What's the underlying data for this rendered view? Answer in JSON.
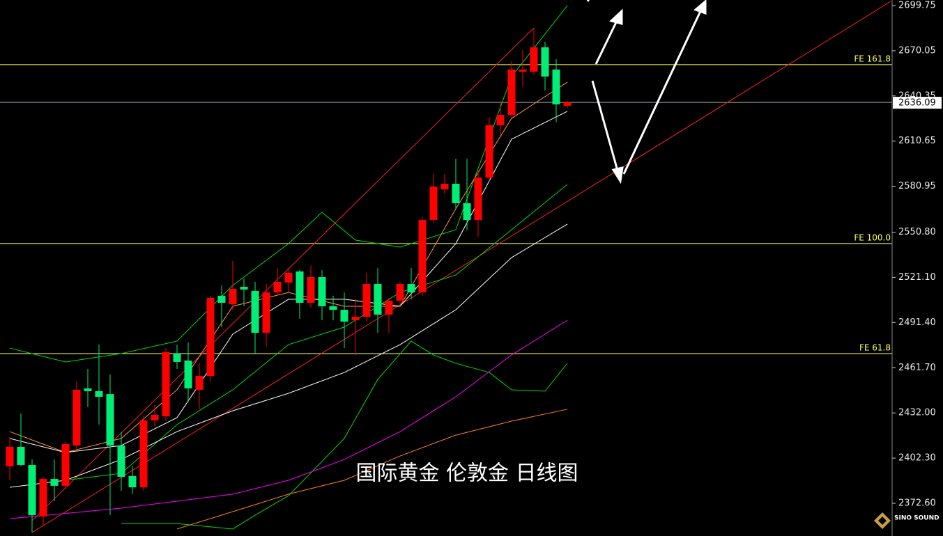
{
  "chart_data": {
    "type": "candlestick",
    "title": "国际黄金 伦敦金 日线图",
    "up_color": "#ff0000",
    "down_color": "#00ee76",
    "open": [
      2396.9,
      2409.7,
      2397.8,
      2363.9,
      2388.6,
      2384.1,
      2410.6,
      2448.1,
      2446.3,
      2444.4,
      2410.6,
      2390.5,
      2383.1,
      2427.1,
      2429.8,
      2471.0,
      2466.4,
      2447.2,
      2456.3,
      2509.0,
      2503.5,
      2514.9,
      2512.2,
      2484.7,
      2511.2,
      2517.7,
      2525.0,
      2504.4,
      2521.3,
      2502.1,
      2499.8,
      2492.9,
      2495.2,
      2516.7,
      2496.6,
      2505.8,
      2516.7,
      2511.2,
      2558.8,
      2579.0,
      2582.6,
      2569.8,
      2558.8,
      2586.7,
      2621.1,
      2627.9,
      2656.3,
      2656.3,
      2672.3,
      2657.7,
      2633.9
    ],
    "high": [
      2416.1,
      2431.6,
      2401.4,
      2390.0,
      2401.4,
      2412.9,
      2452.7,
      2460.9,
      2476.9,
      2457.3,
      2419.7,
      2396.9,
      2429.8,
      2437.1,
      2474.6,
      2476.9,
      2478.3,
      2464.6,
      2509.0,
      2515.8,
      2531.8,
      2520.4,
      2518.1,
      2516.7,
      2527.3,
      2527.3,
      2525.9,
      2528.6,
      2525.9,
      2509.0,
      2511.2,
      2506.7,
      2524.1,
      2527.3,
      2507.6,
      2518.1,
      2527.3,
      2560.7,
      2589.0,
      2589.0,
      2599.1,
      2599.1,
      2591.3,
      2626.5,
      2637.1,
      2663.2,
      2670.5,
      2685.1,
      2676.0,
      2664.5,
      2637.1
    ],
    "low": [
      2387.7,
      2396.9,
      2353.4,
      2358.0,
      2374.0,
      2382.2,
      2408.3,
      2435.8,
      2424.3,
      2364.8,
      2380.8,
      2378.6,
      2380.8,
      2423.4,
      2426.6,
      2460.9,
      2439.0,
      2434.4,
      2452.7,
      2488.4,
      2499.8,
      2502.1,
      2471.0,
      2475.6,
      2509.0,
      2511.2,
      2493.9,
      2501.2,
      2492.9,
      2492.9,
      2474.6,
      2470.1,
      2492.0,
      2484.7,
      2484.7,
      2502.1,
      2506.7,
      2509.0,
      2557.0,
      2576.2,
      2566.2,
      2552.4,
      2547.9,
      2584.5,
      2614.2,
      2626.5,
      2646.2,
      2654.0,
      2643.9,
      2623.3,
      2632.5
    ],
    "close": [
      2409.7,
      2397.8,
      2364.8,
      2388.6,
      2384.1,
      2411.5,
      2447.2,
      2446.3,
      2442.6,
      2410.6,
      2390.0,
      2383.1,
      2427.1,
      2430.7,
      2471.9,
      2465.5,
      2448.1,
      2456.3,
      2507.6,
      2504.4,
      2513.5,
      2513.1,
      2484.7,
      2511.2,
      2518.1,
      2524.1,
      2504.4,
      2521.3,
      2502.1,
      2499.8,
      2492.0,
      2495.2,
      2516.7,
      2496.6,
      2505.8,
      2516.7,
      2511.2,
      2558.8,
      2580.8,
      2582.6,
      2569.8,
      2558.8,
      2586.7,
      2621.1,
      2627.9,
      2657.7,
      2657.7,
      2672.3,
      2653.1,
      2634.8,
      2636.09
    ],
    "ylim": [
      2351.1,
      2703.4
    ],
    "yticks": [
      2699.75,
      2670.05,
      2640.35,
      2610.65,
      2580.95,
      {
        "value": 2550.8,
        "label": "2550.80"
      },
      {
        "value": 2521.1,
        "label": "2521.10"
      },
      {
        "value": 2491.4,
        "label": "2491.40"
      },
      {
        "value": 2461.7,
        "label": "2461.70"
      },
      {
        "value": 2432.0,
        "label": "2432.00"
      },
      {
        "value": 2402.3,
        "label": "2402.30"
      },
      {
        "value": 2372.6,
        "label": "2372.60"
      }
    ],
    "overlays": [
      {
        "color": "#ff2020",
        "x": [
          2,
          79
        ],
        "values": [
          2353.4,
          2702.5
        ]
      },
      {
        "color": "#ff2020",
        "x": [
          2,
          47
        ],
        "values": [
          2361.2,
          2685.1
        ]
      },
      {
        "color": "#ff9a30",
        "x": [
          0,
          5,
          10,
          15,
          20,
          25,
          30,
          35,
          40,
          45,
          50
        ],
        "values": [
          2419.7,
          2406.0,
          2415.2,
          2447.2,
          2502.1,
          2511.2,
          2502.1,
          2502.1,
          2566.2,
          2625.6,
          2649.4
        ]
      },
      {
        "color": "#ffffff",
        "x": [
          0,
          5,
          10,
          15,
          20,
          25,
          30,
          35,
          40,
          45,
          50
        ],
        "values": [
          2415.2,
          2406.0,
          2410.6,
          2428.9,
          2483.8,
          2506.7,
          2506.7,
          2502.1,
          2543.3,
          2611.9,
          2630.2
        ]
      },
      {
        "color": "#00dd00",
        "x": [
          0,
          5,
          10,
          15,
          20,
          25,
          30,
          35,
          40,
          45,
          50
        ],
        "values": [
          2383.1,
          2387.7,
          2392.3,
          2424.3,
          2447.2,
          2476.9,
          2488.4,
          2511.2,
          2522.7,
          2552.4,
          2582.2
        ]
      },
      {
        "color": "#ffffff",
        "x": [
          0,
          5,
          10,
          15,
          20,
          25,
          30,
          35,
          40,
          45,
          50
        ],
        "values": [
          2383.1,
          2387.7,
          2401.4,
          2419.7,
          2433.4,
          2444.9,
          2458.6,
          2476.9,
          2499.8,
          2534.1,
          2556.1
        ]
      },
      {
        "color": "#00dd00",
        "x": [
          0,
          5,
          10,
          15,
          20,
          25,
          28,
          31,
          35,
          40,
          45,
          50
        ],
        "values": [
          2474.6,
          2465.5,
          2471.0,
          2479.2,
          2515.8,
          2543.3,
          2563.9,
          2545.6,
          2541.0,
          2552.4,
          2653.1,
          2699.7
        ]
      },
      {
        "color": "#00dd00",
        "x": [
          10,
          15,
          20,
          22,
          25,
          30,
          33,
          36,
          38,
          40,
          43,
          45,
          48,
          50
        ],
        "values": [
          2359.3,
          2359.3,
          2355.7,
          2364.8,
          2377.6,
          2415.2,
          2454.0,
          2479.2,
          2470.1,
          2464.6,
          2458.6,
          2447.2,
          2446.3,
          2464.6
        ]
      },
      {
        "color": "#ff00ff",
        "x": [
          0,
          10,
          20,
          25,
          30,
          35,
          40,
          45,
          50
        ],
        "values": [
          2362.5,
          2369.4,
          2378.6,
          2387.7,
          2401.4,
          2419.7,
          2442.6,
          2470.1,
          2492.9
        ]
      },
      {
        "color": "#ff8020",
        "x": [
          15,
          20,
          25,
          30,
          35,
          40,
          45,
          50
        ],
        "values": [
          2355.7,
          2367.1,
          2378.6,
          2387.7,
          2403.7,
          2417.4,
          2426.6,
          2434.4
        ]
      }
    ],
    "levels": [
      {
        "value": 2660.9,
        "label": "FE 161.8",
        "color": "#ffff60"
      },
      {
        "value": 2543.3,
        "label": "FE 100.0",
        "color": "#ffff60"
      },
      {
        "value": 2471.0,
        "label": "FE 61.8",
        "color": "#ffff60"
      }
    ],
    "last_price": {
      "value": 2636.09,
      "color": "#a0a8b8"
    }
  },
  "logo": {
    "text": "SINO SOUND"
  }
}
